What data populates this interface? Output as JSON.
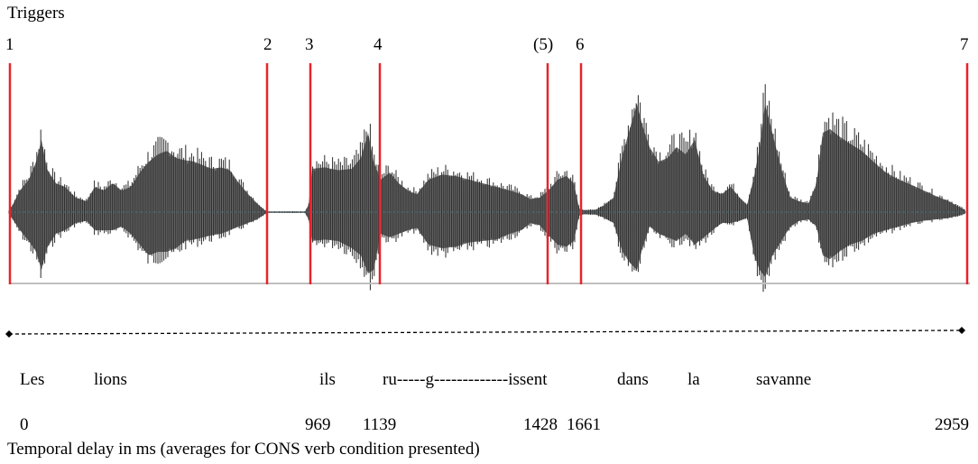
{
  "title": "Triggers",
  "triggers": [
    {
      "label": "1"
    },
    {
      "label": "2"
    },
    {
      "label": "3"
    },
    {
      "label": "4"
    },
    {
      "label": "(5)"
    },
    {
      "label": "6"
    },
    {
      "label": "7"
    }
  ],
  "words": [
    "Les",
    "lions",
    "ils",
    "ru-----g-------------issent",
    "dans",
    "la",
    "savanne"
  ],
  "times": [
    "0",
    "969",
    "1139",
    "1428",
    "1661",
    "2959"
  ],
  "caption": "Temporal delay in ms (averages for CONS verb condition presented)",
  "colors": {
    "trigger": "#e8232a",
    "waveform": "#3c3c3c",
    "baseline": "#bfbfbf",
    "centerline": "#4a6b78"
  }
}
